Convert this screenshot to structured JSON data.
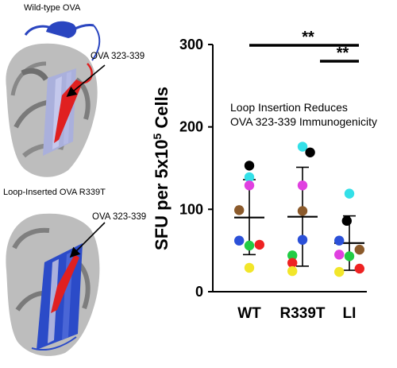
{
  "panels": {
    "top_label": "Wild-type OVA",
    "bottom_label": "Loop-Inserted OVA R339T",
    "top_callout": "OVA 323-339",
    "bottom_callout": "OVA 323-339"
  },
  "chart_data": {
    "type": "scatter",
    "title": "Loop Insertion Reduces",
    "subtitle": "OVA 323-339 Immunogenicity",
    "ylabel_main": "SFU per 5x10",
    "ylabel_sup": "5",
    "ylabel_tail": " Cells",
    "ylim": [
      0,
      300
    ],
    "yticks": [
      0,
      100,
      200,
      300
    ],
    "categories": [
      "WT",
      "R339T",
      "LI"
    ],
    "significance": [
      {
        "from": "WT",
        "to": "LI",
        "label": "**"
      },
      {
        "from": "R339T",
        "to": "LI",
        "label": "**"
      }
    ],
    "groups": [
      {
        "name": "WT",
        "mean": 90,
        "sd_upper": 136,
        "sd_lower": 45,
        "points": [
          {
            "y": 153,
            "color": "#000000"
          },
          {
            "y": 139,
            "color": "#33e0e8"
          },
          {
            "y": 129,
            "color": "#e040e0"
          },
          {
            "y": 99,
            "color": "#8b5a2b"
          },
          {
            "y": 62,
            "color": "#2b50d8"
          },
          {
            "y": 56,
            "color": "#22cc44"
          },
          {
            "y": 57,
            "color": "#ee2222"
          },
          {
            "y": 29,
            "color": "#f2e62a"
          }
        ]
      },
      {
        "name": "R339T",
        "mean": 91,
        "sd_upper": 151,
        "sd_lower": 31,
        "points": [
          {
            "y": 176,
            "color": "#33e0e8"
          },
          {
            "y": 169,
            "color": "#000000"
          },
          {
            "y": 129,
            "color": "#e040e0"
          },
          {
            "y": 98,
            "color": "#8b5a2b"
          },
          {
            "y": 63,
            "color": "#2b50d8"
          },
          {
            "y": 44,
            "color": "#22cc44"
          },
          {
            "y": 35,
            "color": "#ee2222"
          },
          {
            "y": 25,
            "color": "#f2e62a"
          }
        ]
      },
      {
        "name": "LI",
        "mean": 59,
        "sd_upper": 92,
        "sd_lower": 26,
        "points": [
          {
            "y": 119,
            "color": "#33e0e8"
          },
          {
            "y": 86,
            "color": "#000000"
          },
          {
            "y": 62,
            "color": "#2b50d8"
          },
          {
            "y": 45,
            "color": "#e040e0"
          },
          {
            "y": 43,
            "color": "#22cc44"
          },
          {
            "y": 51,
            "color": "#8b5a2b"
          },
          {
            "y": 28,
            "color": "#ee2222"
          },
          {
            "y": 24,
            "color": "#f2e62a"
          }
        ]
      }
    ]
  }
}
